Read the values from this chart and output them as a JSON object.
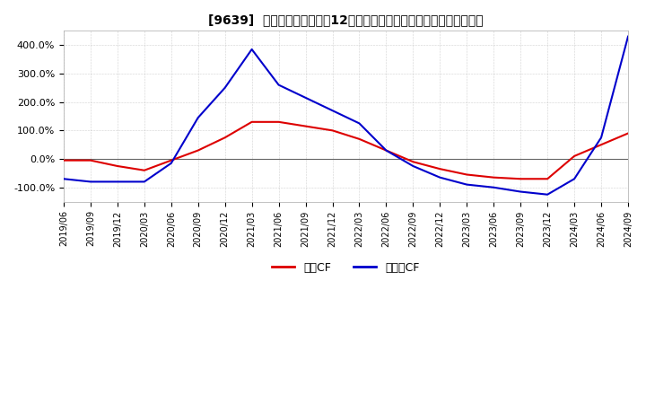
{
  "title": "[9639]  キャッシュフローの12か月移動合計の対前年同期増減率の推移",
  "ylim": [
    -150,
    450
  ],
  "yticks": [
    -100,
    0,
    100,
    200,
    300,
    400
  ],
  "ytick_labels": [
    "-100.0%",
    "0.0%",
    "100.0%",
    "200.0%",
    "300.0%",
    "400.0%"
  ],
  "legend_labels": [
    "営業CF",
    "フリーCF"
  ],
  "line_colors": [
    "#dd0000",
    "#0000cc"
  ],
  "background_color": "#ffffff",
  "plot_bg_color": "#ffffff",
  "grid_color": "#aaaaaa",
  "zero_line_color": "#666666",
  "dates": [
    "2019/06",
    "2019/09",
    "2019/12",
    "2020/03",
    "2020/06",
    "2020/09",
    "2020/12",
    "2021/03",
    "2021/06",
    "2021/09",
    "2021/12",
    "2022/03",
    "2022/06",
    "2022/09",
    "2022/12",
    "2023/03",
    "2023/06",
    "2023/09",
    "2023/12",
    "2024/03",
    "2024/06",
    "2024/09"
  ],
  "operating_cf": [
    -5,
    -5,
    -25,
    -40,
    -5,
    30,
    75,
    130,
    130,
    115,
    100,
    70,
    30,
    -10,
    -35,
    -55,
    -65,
    -70,
    -70,
    10,
    50,
    90
  ],
  "free_cf": [
    -70,
    -80,
    -80,
    -80,
    -15,
    145,
    250,
    385,
    260,
    215,
    170,
    125,
    30,
    -25,
    -65,
    -90,
    -100,
    -115,
    -125,
    -70,
    75,
    430
  ]
}
